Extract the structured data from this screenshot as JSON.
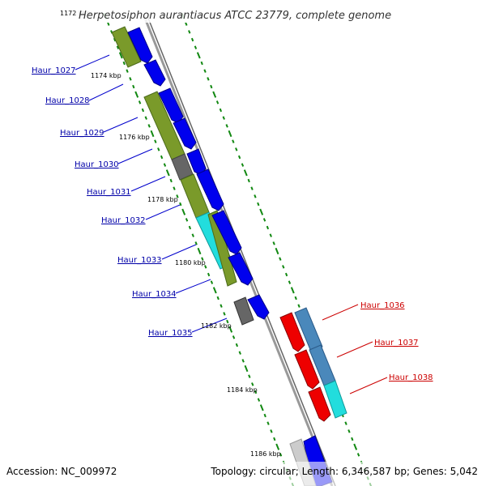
{
  "title": "Herpetosiphon aurantiacus ATCC 23779, complete genome",
  "footer": {
    "accession": "Accession: NC_009972",
    "summary": "Topology: circular; Length: 6,346,587 bp; Genes: 5,042"
  },
  "ticks": [
    "1172 kbp",
    "1174 kbp",
    "1176 kbp",
    "1178 kbp",
    "1180 kbp",
    "1182 kbp",
    "1184 kbp",
    "1186 kbp"
  ],
  "genes_left": [
    "Haur_1027",
    "Haur_1028",
    "Haur_1029",
    "Haur_1030",
    "Haur_1031",
    "Haur_1032",
    "Haur_1033",
    "Haur_1034",
    "Haur_1035"
  ],
  "genes_right": [
    "Haur_1036",
    "Haur_1037",
    "Haur_1038"
  ],
  "colors": {
    "left_label": "#0000a8",
    "right_label": "#cc0000",
    "olive": "#7a9a2a",
    "blue": "#0000ee",
    "gray": "#666666",
    "cyan": "#22dddd",
    "red": "#ee0000",
    "steel": "#4a88bb",
    "backbone": "#888888",
    "dots": "#118811"
  }
}
